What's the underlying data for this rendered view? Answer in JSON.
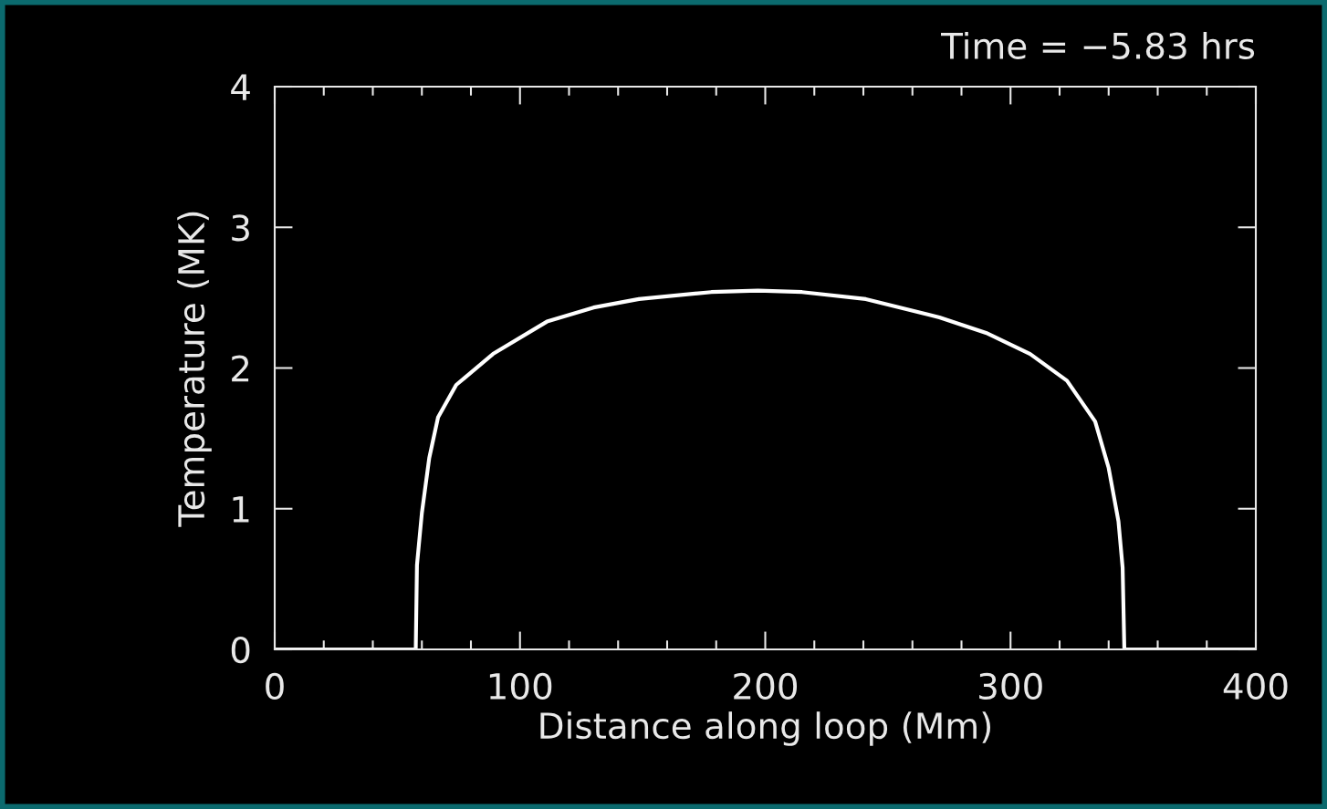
{
  "chart_data": {
    "type": "line",
    "title": "Time = −5.83 hrs",
    "xlabel": "Distance along loop (Mm)",
    "ylabel": "Temperature (MK)",
    "x": [
      0,
      20,
      40,
      57.5,
      58,
      60,
      63,
      66.6,
      74,
      89,
      111,
      130,
      148.5,
      178,
      197,
      215,
      241,
      271,
      290,
      308,
      323,
      334.5,
      340,
      344,
      345.7,
      346.4,
      360,
      380,
      400
    ],
    "series": [
      {
        "color": "#ffffff",
        "values": [
          0,
          0,
          0,
          0,
          0.6,
          0.97,
          1.36,
          1.65,
          1.88,
          2.1,
          2.33,
          2.43,
          2.49,
          2.54,
          2.55,
          2.54,
          2.49,
          2.36,
          2.25,
          2.1,
          1.91,
          1.62,
          1.29,
          0.91,
          0.58,
          0,
          0,
          0,
          0
        ]
      }
    ],
    "xlim": [
      0,
      400
    ],
    "ylim": [
      0,
      4
    ],
    "xticks": [
      0,
      100,
      200,
      300,
      400
    ],
    "yticks": [
      0,
      1,
      2,
      3,
      4
    ],
    "grid": false,
    "legend": false,
    "marker": "none",
    "line_style": "solid"
  }
}
